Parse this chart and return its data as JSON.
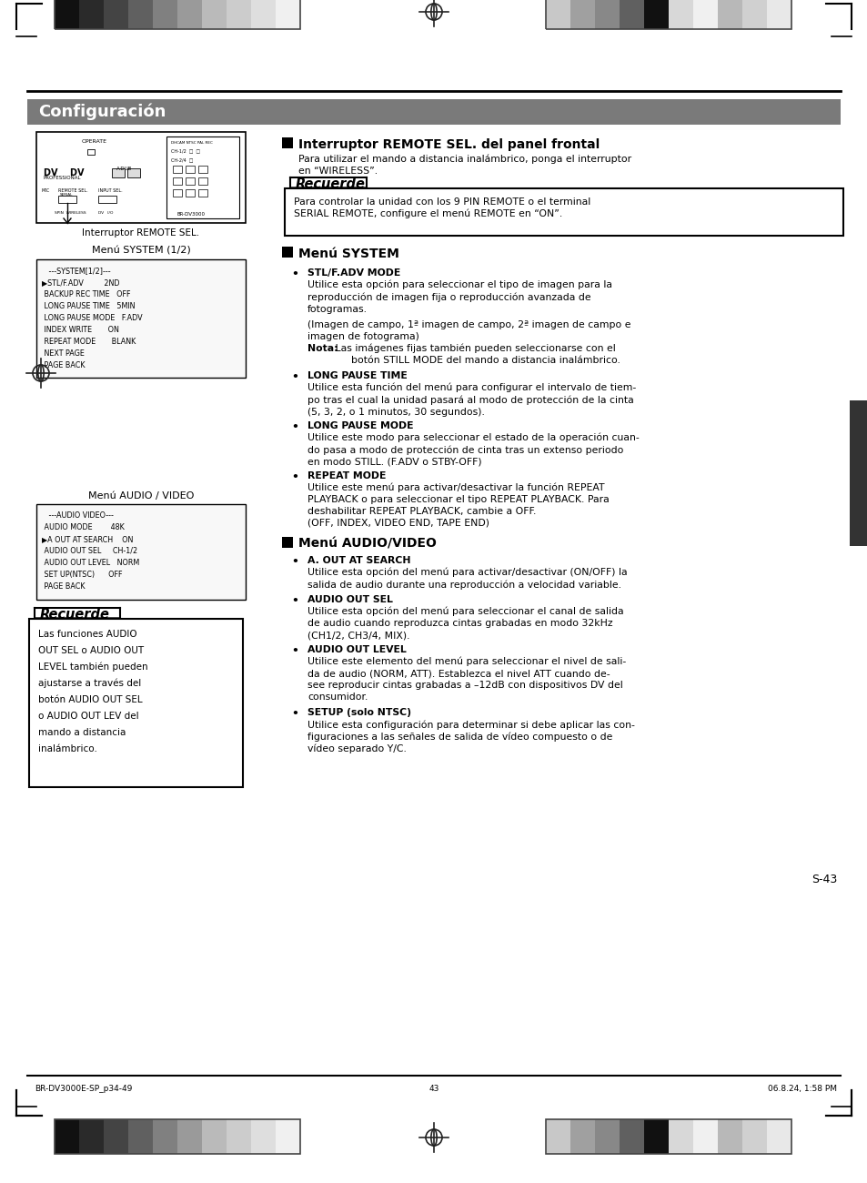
{
  "page_bg": "#ffffff",
  "title_text": "Configuración",
  "title_color": "#ffffff",
  "title_bg": "#7a7a7a",
  "footer_left": "BR-DV3000E-SP_p34-49",
  "footer_center": "43",
  "footer_right": "06.8.24, 1:58 PM",
  "page_number": "S-43",
  "interruptor_title": "Interruptor REMOTE SEL. del panel frontal",
  "interruptor_text1": "Para utilizar el mando a distancia inalámbrico, ponga el interruptor",
  "interruptor_text2": "en “WIRELESS”.",
  "recuerde1_title": "Recuerde",
  "recuerde1_text1": "Para controlar la unidad con los 9 PIN REMOTE o el terminal",
  "recuerde1_text2": "SERIAL REMOTE, configure el menú REMOTE en “ON”.",
  "caption_interruptor": "Interruptor REMOTE SEL.",
  "menu_system_title": "Menú SYSTEM (1/2)",
  "menu_system_lines": [
    "   ---SYSTEM[1/2]---",
    "▶STL/F.ADV         2ND",
    " BACKUP REC TIME   OFF",
    " LONG PAUSE TIME   5MIN",
    " LONG PAUSE MODE   F.ADV",
    " INDEX WRITE       ON",
    " REPEAT MODE       BLANK",
    " NEXT PAGE",
    " PAGE BACK"
  ],
  "menu_audio_title": "Menú AUDIO / VIDEO",
  "menu_audio_lines": [
    "   ---AUDIO VIDEO---",
    " AUDIO MODE        48K",
    "▶A OUT AT SEARCH    ON",
    " AUDIO OUT SEL     CH-1/2",
    " AUDIO OUT LEVEL   NORM",
    " SET UP(NTSC)      OFF",
    " PAGE BACK"
  ],
  "recuerde2_title": "Recuerde",
  "recuerde2_lines": [
    "Las funciones AUDIO",
    "OUT SEL o AUDIO OUT",
    "LEVEL también pueden",
    "ajustarse a través del",
    "botón AUDIO OUT SEL",
    "o AUDIO OUT LEV del",
    "mando a distancia",
    "inalámbrico."
  ],
  "sec_system": "Menú SYSTEM",
  "stlf_title": "STL/F.ADV MODE",
  "stlf_text": "Utilice esta opción para seleccionar el tipo de imagen para la\nreproducción de imagen fija o reproducción avanzada de\nfotogramas.",
  "stlf_paren": "(Imagen de campo, 1ª imagen de campo, 2ª imagen de campo e\nimagen de fotograma)",
  "nota_label": "Nota:",
  "nota_rest": " Las imágenes fijas también pueden seleccionarse con el\n      botón STILL MODE del mando a distancia inalámbrico.",
  "lpt_title": "LONG PAUSE TIME",
  "lpt_text": "Utilice esta función del menú para configurar el intervalo de tiem-\npo tras el cual la unidad pasará al modo de protección de la cinta\n(5, 3, 2, o 1 minutos, 30 segundos).",
  "lpm_title": "LONG PAUSE MODE",
  "lpm_text": "Utilice este modo para seleccionar el estado de la operación cuan-\ndo pasa a modo de protección de cinta tras un extenso periodo\nen modo STILL. (F.ADV o STBY-OFF)",
  "rm_title": "REPEAT MODE",
  "rm_text": "Utilice este menú para activar/desactivar la función REPEAT\nPLAYBACK o para seleccionar el tipo REPEAT PLAYBACK. Para\ndeshabilitar REPEAT PLAYBACK, cambie a OFF.\n(OFF, INDEX, VIDEO END, TAPE END)",
  "sec_audio": "Menú AUDIO/VIDEO",
  "a_out_title": "A. OUT AT SEARCH",
  "a_out_text": "Utilice esta opción del menú para activar/desactivar (ON/OFF) la\nsalida de audio durante una reproducción a velocidad variable.",
  "ao_sel_title": "AUDIO OUT SEL",
  "ao_sel_text": "Utilice esta opción del menú para seleccionar el canal de salida\nde audio cuando reproduzca cintas grabadas en modo 32kHz\n(CH1/2, CH3/4, MIX).",
  "ao_lev_title": "AUDIO OUT LEVEL",
  "ao_lev_text": "Utilice este elemento del menú para seleccionar el nivel de sali-\nda de audio (NORM, ATT). Establezca el nivel ATT cuando de-\nsee reproducir cintas grabadas a –12dB con dispositivos DV del\nconsumidor.",
  "setup_title": "SETUP (solo NTSC)",
  "setup_text": "Utilice esta configuración para determinar si debe aplicar las con-\nfiguraciones a las señales de salida de vídeo compuesto o de\nvídeo separado Y/C.",
  "bar_colors_left": [
    "#111111",
    "#2a2a2a",
    "#444444",
    "#606060",
    "#808080",
    "#9a9a9a",
    "#bababa",
    "#cccccc",
    "#dedede",
    "#f0f0f0"
  ],
  "bar_colors_right": [
    "#c8c8c8",
    "#a0a0a0",
    "#888888",
    "#606060",
    "#111111",
    "#d8d8d8",
    "#f0f0f0",
    "#b8b8b8",
    "#d0d0d0",
    "#e8e8e8"
  ]
}
